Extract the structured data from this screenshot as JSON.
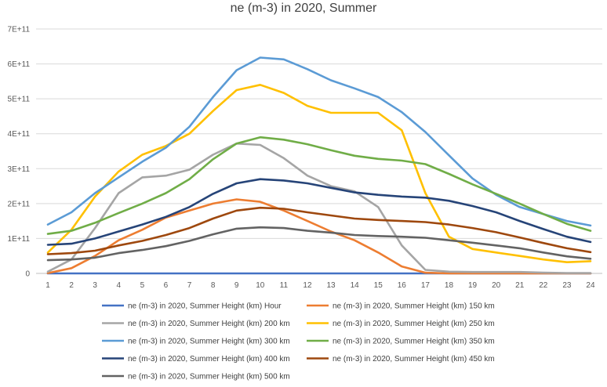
{
  "chart_data": {
    "type": "line",
    "title": "ne  (m-3) in 2020, Summer",
    "xlabel": "",
    "ylabel": "",
    "x": [
      1,
      2,
      3,
      4,
      5,
      6,
      7,
      8,
      9,
      10,
      11,
      12,
      13,
      14,
      15,
      16,
      17,
      18,
      19,
      20,
      21,
      22,
      23,
      24
    ],
    "ylim": [
      0,
      700000000000
    ],
    "y_ticks": [
      0,
      100000000000,
      200000000000,
      300000000000,
      400000000000,
      500000000000,
      600000000000,
      700000000000
    ],
    "y_tick_labels": [
      "0",
      "1E+11",
      "2E+11",
      "3E+11",
      "4E+11",
      "5E+11",
      "6E+11",
      "7E+11"
    ],
    "grid": true,
    "legend_position": "bottom",
    "series": [
      {
        "name": "ne  (m-3) in 2020, Summer Height (km) Hour",
        "color": "#4472C4",
        "values": [
          0,
          0,
          0,
          0,
          0,
          0,
          0,
          0,
          0,
          0,
          0,
          0,
          0,
          0,
          0,
          0,
          0,
          0,
          0,
          0,
          0,
          0,
          0,
          0
        ]
      },
      {
        "name": "ne  (m-3) in 2020, Summer Height (km) 150 km",
        "color": "#ED7D31",
        "values": [
          1000000000.0,
          15000000000.0,
          50000000000.0,
          95000000000.0,
          125000000000.0,
          160000000000.0,
          180000000000.0,
          200000000000.0,
          212000000000.0,
          205000000000.0,
          180000000000.0,
          150000000000.0,
          120000000000.0,
          95000000000.0,
          60000000000.0,
          20000000000.0,
          2000000000.0,
          0,
          0,
          0,
          0,
          0,
          0,
          0
        ]
      },
      {
        "name": "ne  (m-3) in 2020, Summer Height (km) 200 km",
        "color": "#A5A5A5",
        "values": [
          5000000000.0,
          40000000000.0,
          130000000000.0,
          230000000000.0,
          275000000000.0,
          280000000000.0,
          297000000000.0,
          340000000000.0,
          372000000000.0,
          368000000000.0,
          330000000000.0,
          280000000000.0,
          250000000000.0,
          235000000000.0,
          190000000000.0,
          80000000000.0,
          10000000000.0,
          5000000000.0,
          4000000000.0,
          4000000000.0,
          4000000000.0,
          2000000000.0,
          1000000000.0,
          1000000000.0
        ]
      },
      {
        "name": "ne  (m-3) in 2020, Summer Height (km) 250 km",
        "color": "#FFC000",
        "values": [
          60000000000.0,
          125000000000.0,
          220000000000.0,
          292000000000.0,
          340000000000.0,
          365000000000.0,
          400000000000.0,
          465000000000.0,
          525000000000.0,
          540000000000.0,
          517000000000.0,
          480000000000.0,
          460000000000.0,
          460000000000.0,
          460000000000.0,
          410000000000.0,
          230000000000.0,
          105000000000.0,
          70000000000.0,
          60000000000.0,
          50000000000.0,
          40000000000.0,
          32000000000.0,
          35000000000.0
        ]
      },
      {
        "name": "ne  (m-3) in 2020, Summer Height (km) 300 km",
        "color": "#5B9BD5",
        "values": [
          140000000000.0,
          175000000000.0,
          230000000000.0,
          275000000000.0,
          320000000000.0,
          360000000000.0,
          420000000000.0,
          505000000000.0,
          582000000000.0,
          618000000000.0,
          613000000000.0,
          585000000000.0,
          553000000000.0,
          530000000000.0,
          505000000000.0,
          462000000000.0,
          405000000000.0,
          338000000000.0,
          272000000000.0,
          225000000000.0,
          190000000000.0,
          170000000000.0,
          150000000000.0,
          137000000000.0
        ]
      },
      {
        "name": "ne  (m-3) in 2020, Summer Height (km) 350 km",
        "color": "#70AD47",
        "values": [
          113000000000.0,
          122000000000.0,
          145000000000.0,
          173000000000.0,
          200000000000.0,
          230000000000.0,
          270000000000.0,
          327000000000.0,
          372000000000.0,
          390000000000.0,
          383000000000.0,
          370000000000.0,
          353000000000.0,
          337000000000.0,
          328000000000.0,
          323000000000.0,
          313000000000.0,
          285000000000.0,
          255000000000.0,
          228000000000.0,
          200000000000.0,
          170000000000.0,
          142000000000.0,
          122000000000.0
        ]
      },
      {
        "name": "ne  (m-3) in 2020, Summer Height (km) 400 km",
        "color": "#264478",
        "values": [
          82000000000.0,
          85000000000.0,
          100000000000.0,
          120000000000.0,
          140000000000.0,
          162000000000.0,
          190000000000.0,
          228000000000.0,
          258000000000.0,
          270000000000.0,
          266000000000.0,
          258000000000.0,
          245000000000.0,
          232000000000.0,
          225000000000.0,
          220000000000.0,
          217000000000.0,
          208000000000.0,
          193000000000.0,
          175000000000.0,
          150000000000.0,
          127000000000.0,
          105000000000.0,
          90000000000.0
        ]
      },
      {
        "name": "ne  (m-3) in 2020, Summer Height (km) 450 km",
        "color": "#9E480E",
        "values": [
          55000000000.0,
          58000000000.0,
          65000000000.0,
          80000000000.0,
          93000000000.0,
          110000000000.0,
          130000000000.0,
          157000000000.0,
          180000000000.0,
          188000000000.0,
          185000000000.0,
          175000000000.0,
          166000000000.0,
          157000000000.0,
          153000000000.0,
          150000000000.0,
          147000000000.0,
          140000000000.0,
          130000000000.0,
          118000000000.0,
          103000000000.0,
          87000000000.0,
          72000000000.0,
          61000000000.0
        ]
      },
      {
        "name": "ne  (m-3) in 2020, Summer Height (km) 500 km",
        "color": "#636363",
        "values": [
          38000000000.0,
          40000000000.0,
          45000000000.0,
          58000000000.0,
          67000000000.0,
          78000000000.0,
          93000000000.0,
          112000000000.0,
          128000000000.0,
          132000000000.0,
          130000000000.0,
          122000000000.0,
          117000000000.0,
          110000000000.0,
          107000000000.0,
          105000000000.0,
          102000000000.0,
          95000000000.0,
          88000000000.0,
          80000000000.0,
          72000000000.0,
          60000000000.0,
          49000000000.0,
          42000000000.0
        ]
      }
    ]
  }
}
